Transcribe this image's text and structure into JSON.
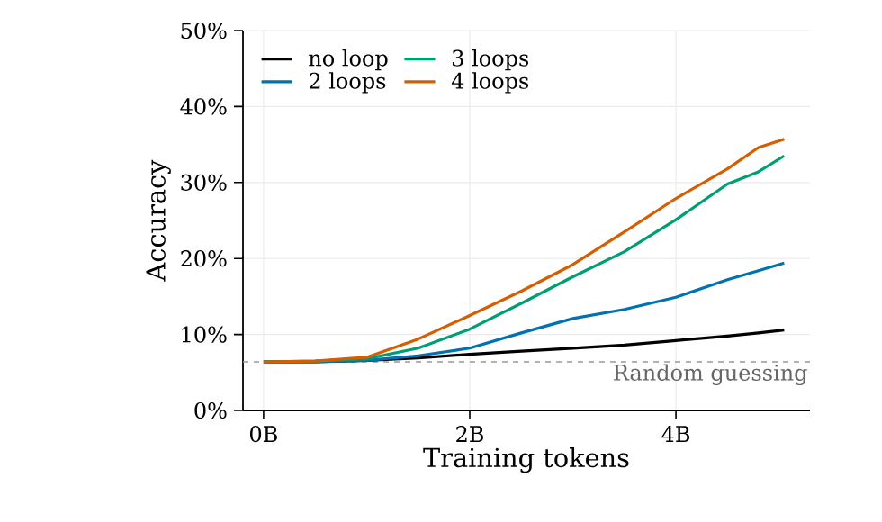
{
  "chart_data": {
    "type": "line",
    "xlabel": "Training tokens",
    "ylabel": "Accuracy",
    "xlim": [
      -0.2,
      5.3
    ],
    "ylim": [
      0,
      50
    ],
    "xticks": [
      {
        "value": 0,
        "label": "0B"
      },
      {
        "value": 2,
        "label": "2B"
      },
      {
        "value": 4,
        "label": "4B"
      }
    ],
    "yticks": [
      {
        "value": 0,
        "label": "0%"
      },
      {
        "value": 10,
        "label": "10%"
      },
      {
        "value": 20,
        "label": "20%"
      },
      {
        "value": 30,
        "label": "30%"
      },
      {
        "value": 40,
        "label": "40%"
      },
      {
        "value": 50,
        "label": "50%"
      }
    ],
    "grid": true,
    "legend": "top left",
    "marker": "none",
    "line_style": "solid",
    "x": [
      0,
      0.5,
      1,
      1.5,
      2,
      2.5,
      3,
      3.5,
      4,
      4.5,
      4.8,
      5.05
    ],
    "series": [
      {
        "name": "no loop",
        "color": "#000000",
        "values": [
          6.4,
          6.4,
          6.6,
          6.9,
          7.4,
          7.8,
          8.2,
          8.6,
          9.2,
          9.8,
          10.2,
          10.6
        ]
      },
      {
        "name": "2 loops",
        "color": "#0072b2",
        "values": [
          6.4,
          6.4,
          6.6,
          7.2,
          8.2,
          10.2,
          12.1,
          13.3,
          14.9,
          17.2,
          18.4,
          19.4
        ]
      },
      {
        "name": "3 loops",
        "color": "#009e73",
        "values": [
          6.4,
          6.5,
          6.8,
          8.2,
          10.7,
          14.1,
          17.6,
          20.9,
          25.1,
          29.8,
          31.4,
          33.5
        ]
      },
      {
        "name": "4 loops",
        "color": "#d55e00",
        "values": [
          6.4,
          6.5,
          7.0,
          9.4,
          12.5,
          15.7,
          19.2,
          23.5,
          27.9,
          31.8,
          34.6,
          35.7
        ]
      }
    ],
    "ref_lines": [
      {
        "axis": "y",
        "value": 6.4,
        "label": "Random guessing",
        "color": "#999999",
        "line_style": "dashed"
      }
    ]
  }
}
